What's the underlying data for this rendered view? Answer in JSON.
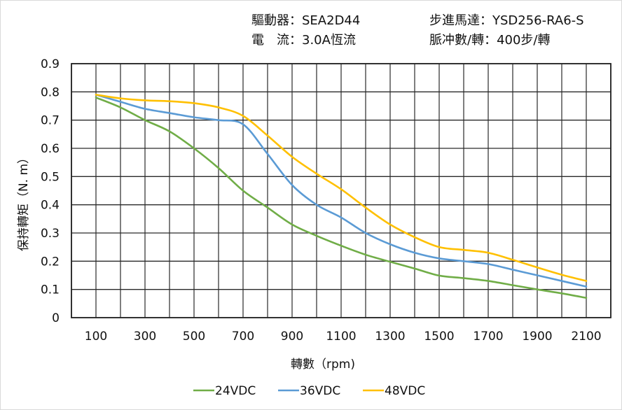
{
  "header": {
    "driver": "驅動器：SEA2D44",
    "motor": "步進馬達：YSD256-RA6-S",
    "current": "電　流：3.0A恆流",
    "pulses": "脈冲數/轉：400步/轉"
  },
  "chart_data": {
    "type": "line",
    "title": "",
    "xlabel": "轉數（rpm)",
    "ylabel": "保持轉矩（N. m）",
    "xlim": [
      0,
      2200
    ],
    "ylim": [
      0,
      0.9
    ],
    "grid": true,
    "legend_position": "bottom",
    "x_tick_labels": [
      "100",
      "300",
      "500",
      "700",
      "900",
      "1100",
      "1300",
      "1500",
      "1700",
      "1900",
      "2100"
    ],
    "y_tick_labels": [
      "0",
      "0.1",
      "0.2",
      "0.3",
      "0.4",
      "0.5",
      "0.6",
      "0.7",
      "0.8",
      "0.9"
    ],
    "x": [
      100,
      200,
      300,
      400,
      500,
      600,
      700,
      800,
      900,
      1000,
      1100,
      1200,
      1300,
      1400,
      1500,
      1600,
      1700,
      1800,
      1900,
      2000,
      2100
    ],
    "series": [
      {
        "name": "24VDC",
        "color": "#70ad47",
        "values": [
          0.78,
          0.745,
          0.7,
          0.66,
          0.6,
          0.53,
          0.45,
          0.39,
          0.33,
          0.29,
          0.255,
          0.223,
          0.198,
          0.174,
          0.149,
          0.14,
          0.13,
          0.115,
          0.1,
          0.086,
          0.07
        ]
      },
      {
        "name": "36VDC",
        "color": "#5b9bd5",
        "values": [
          0.79,
          0.765,
          0.74,
          0.725,
          0.71,
          0.7,
          0.685,
          0.58,
          0.47,
          0.4,
          0.355,
          0.3,
          0.26,
          0.23,
          0.21,
          0.2,
          0.19,
          0.17,
          0.15,
          0.13,
          0.11
        ]
      },
      {
        "name": "48VDC",
        "color": "#ffc000",
        "values": [
          0.79,
          0.777,
          0.77,
          0.767,
          0.76,
          0.745,
          0.715,
          0.645,
          0.57,
          0.51,
          0.455,
          0.39,
          0.33,
          0.285,
          0.25,
          0.24,
          0.23,
          0.205,
          0.178,
          0.152,
          0.13
        ]
      }
    ]
  }
}
